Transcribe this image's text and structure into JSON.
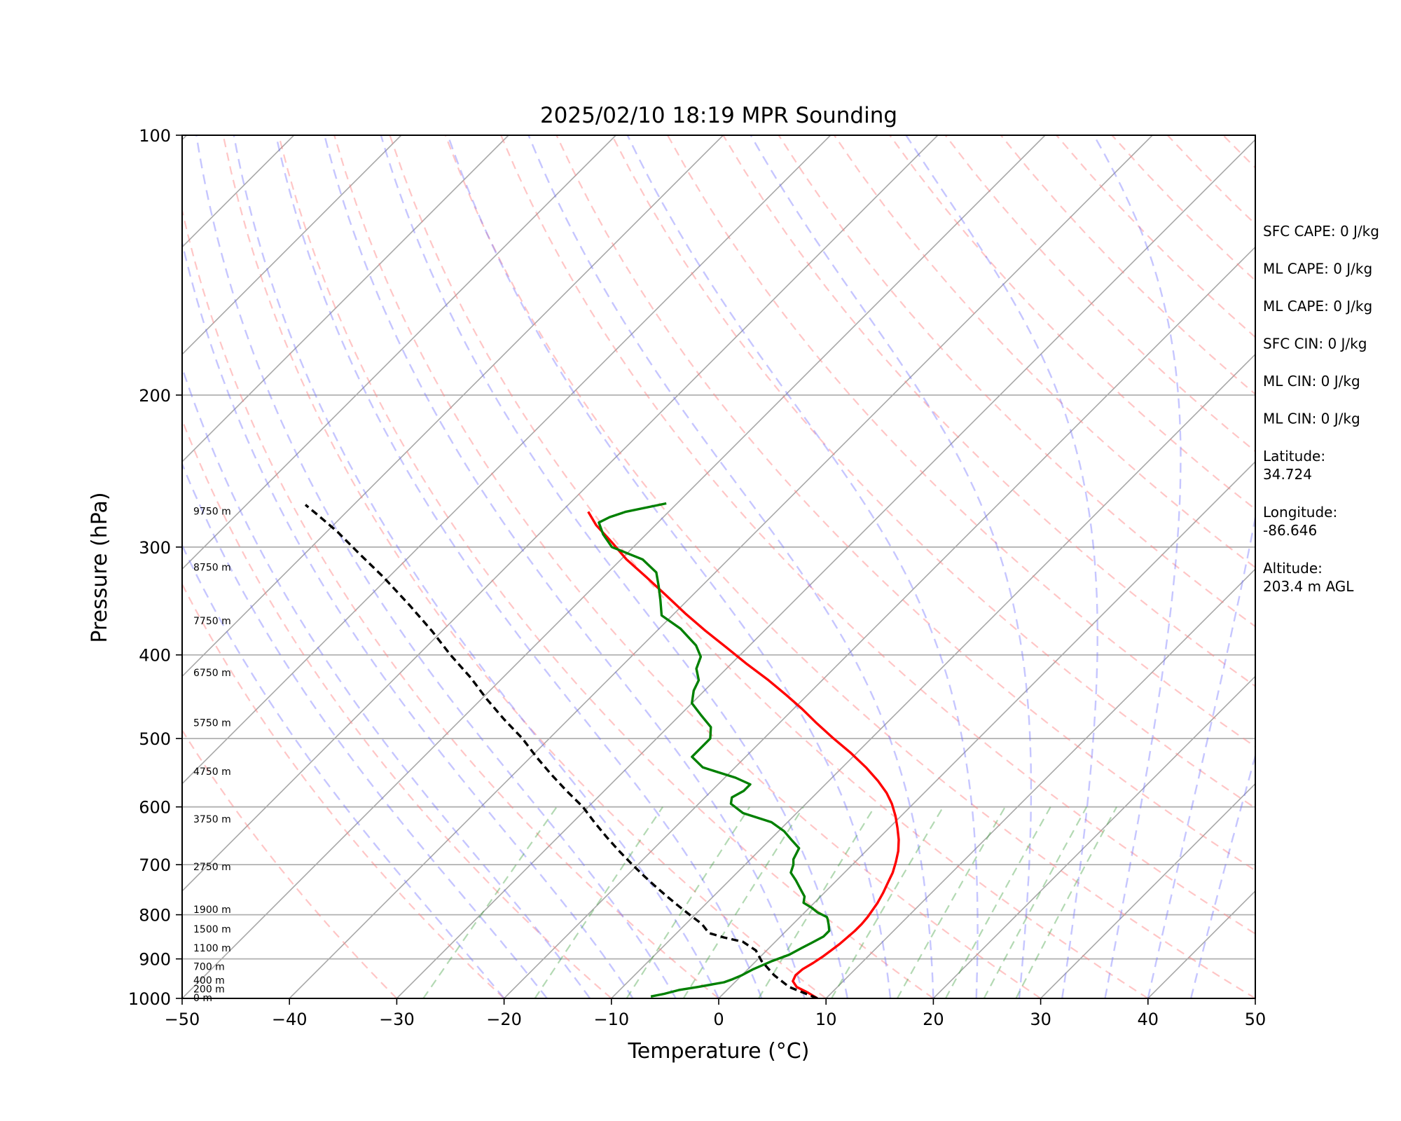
{
  "chart_data": {
    "type": "line",
    "title": "2025/02/10 18:19 MPR Sounding",
    "xlabel": "Temperature (°C)",
    "ylabel": "Pressure (hPa)",
    "xlim": [
      -50,
      50
    ],
    "ylim": [
      1000,
      100
    ],
    "y_scale": "log",
    "x_ticks": [
      "−50",
      "−40",
      "−30",
      "−20",
      "−10",
      "0",
      "10",
      "20",
      "30",
      "40",
      "50"
    ],
    "y_ticks": [
      "100",
      "200",
      "300",
      "400",
      "500",
      "600",
      "700",
      "800",
      "900",
      "1000"
    ],
    "grid": true,
    "skew": "45°",
    "series": [
      {
        "color": "#ff0000",
        "points": [
          [
            9.2,
            1000
          ],
          [
            7.8,
            985
          ],
          [
            6.2,
            970
          ],
          [
            5.3,
            955
          ],
          [
            5.0,
            940
          ],
          [
            5.1,
            925
          ],
          [
            5.5,
            910
          ],
          [
            5.8,
            895
          ],
          [
            6.0,
            880
          ],
          [
            6.2,
            865
          ],
          [
            6.3,
            850
          ],
          [
            6.4,
            835
          ],
          [
            6.4,
            820
          ],
          [
            6.3,
            805
          ],
          [
            6.1,
            790
          ],
          [
            5.9,
            775
          ],
          [
            5.5,
            755
          ],
          [
            5.0,
            735
          ],
          [
            4.5,
            715
          ],
          [
            3.8,
            695
          ],
          [
            3.0,
            675
          ],
          [
            2.0,
            655
          ],
          [
            0.8,
            635
          ],
          [
            -0.5,
            615
          ],
          [
            -2.0,
            595
          ],
          [
            -3.5,
            578
          ],
          [
            -5.4,
            560
          ],
          [
            -7.8,
            540
          ],
          [
            -10.5,
            520
          ],
          [
            -13.5,
            500
          ],
          [
            -16.5,
            480
          ],
          [
            -19.2,
            462
          ],
          [
            -22.0,
            445
          ],
          [
            -25.0,
            428
          ],
          [
            -28.5,
            410
          ],
          [
            -32.0,
            392
          ],
          [
            -35.5,
            375
          ],
          [
            -39.0,
            358
          ],
          [
            -42.5,
            341
          ],
          [
            -46.0,
            325
          ],
          [
            -49.5,
            310
          ],
          [
            -52.5,
            296
          ],
          [
            -55.5,
            283
          ],
          [
            -57.5,
            273
          ]
        ]
      },
      {
        "color": "#008000",
        "points": [
          [
            -6.5,
            995
          ],
          [
            -5.5,
            988
          ],
          [
            -4.5,
            978
          ],
          [
            -3.0,
            970
          ],
          [
            -1.0,
            958
          ],
          [
            -0.5,
            950
          ],
          [
            0.0,
            940
          ],
          [
            0.5,
            925
          ],
          [
            1.0,
            915
          ],
          [
            1.5,
            905
          ],
          [
            2.5,
            890
          ],
          [
            3.0,
            875
          ],
          [
            3.5,
            862
          ],
          [
            4.0,
            848
          ],
          [
            4.0,
            835
          ],
          [
            3.4,
            822
          ],
          [
            2.8,
            810
          ],
          [
            2.5,
            805
          ],
          [
            1.2,
            795
          ],
          [
            0.2,
            785
          ],
          [
            -1.0,
            775
          ],
          [
            -1.5,
            762
          ],
          [
            -2.5,
            748
          ],
          [
            -3.8,
            730
          ],
          [
            -5.0,
            715
          ],
          [
            -5.5,
            700
          ],
          [
            -6.0,
            690
          ],
          [
            -6.5,
            670
          ],
          [
            -8.0,
            655
          ],
          [
            -9.5,
            640
          ],
          [
            -11.5,
            625
          ],
          [
            -15.0,
            610
          ],
          [
            -17.0,
            595
          ],
          [
            -17.5,
            585
          ],
          [
            -17.0,
            575
          ],
          [
            -17.0,
            565
          ],
          [
            -19.0,
            555
          ],
          [
            -23.0,
            540
          ],
          [
            -25.0,
            525
          ],
          [
            -25.0,
            512
          ],
          [
            -25.0,
            500
          ],
          [
            -26.0,
            485
          ],
          [
            -28.0,
            470
          ],
          [
            -30.0,
            455
          ],
          [
            -31.0,
            440
          ],
          [
            -31.5,
            428
          ],
          [
            -32.8,
            415
          ],
          [
            -33.5,
            402
          ],
          [
            -35.0,
            390
          ],
          [
            -38.0,
            373
          ],
          [
            -41.0,
            360
          ],
          [
            -42.5,
            346
          ],
          [
            -44.0,
            333
          ],
          [
            -45.5,
            321
          ],
          [
            -48.0,
            310
          ],
          [
            -52.0,
            300
          ],
          [
            -54.0,
            290
          ],
          [
            -55.5,
            281
          ],
          [
            -55.0,
            277
          ],
          [
            -54.0,
            273
          ],
          [
            -52.0,
            269
          ],
          [
            -51.0,
            267
          ]
        ]
      },
      {
        "color": "#000000",
        "dashed": true,
        "points": [
          [
            9.2,
            1000
          ],
          [
            5.5,
            970
          ],
          [
            3.0,
            940
          ],
          [
            0.5,
            905
          ],
          [
            -1.0,
            880
          ],
          [
            -3.0,
            860
          ],
          [
            -5.2,
            850
          ],
          [
            -7.0,
            840
          ],
          [
            -8.5,
            820
          ],
          [
            -10.5,
            800
          ],
          [
            -12.5,
            780
          ],
          [
            -14.5,
            760
          ],
          [
            -16.5,
            740
          ],
          [
            -18.5,
            720
          ],
          [
            -20.5,
            700
          ],
          [
            -23.0,
            675
          ],
          [
            -25.5,
            650
          ],
          [
            -28.0,
            625
          ],
          [
            -30.5,
            600
          ],
          [
            -33.5,
            575
          ],
          [
            -36.5,
            550
          ],
          [
            -39.5,
            525
          ],
          [
            -42.5,
            500
          ],
          [
            -46.0,
            475
          ],
          [
            -49.5,
            450
          ],
          [
            -53.0,
            425
          ],
          [
            -57.0,
            400
          ],
          [
            -61.0,
            375
          ],
          [
            -65.5,
            350
          ],
          [
            -70.5,
            325
          ],
          [
            -75.0,
            305
          ],
          [
            -79.0,
            288
          ],
          [
            -82.5,
            275
          ],
          [
            -84.5,
            268
          ]
        ]
      }
    ],
    "height_labels": [
      "0 m",
      "200 m",
      "400 m",
      "700 m",
      "1100 m",
      "1500 m",
      "1900 m",
      "2750 m",
      "3750 m",
      "4750 m",
      "5750 m",
      "6750 m",
      "7750 m",
      "8750 m",
      "9750 m"
    ],
    "height_label_pressures": [
      1000,
      977,
      954,
      920,
      876,
      833,
      790,
      705,
      621,
      547,
      480,
      420,
      366,
      317,
      273
    ]
  },
  "stats": [
    {
      "text": "SFC CAPE: 0 J/kg"
    },
    {
      "text": "ML CAPE: 0 J/kg"
    },
    {
      "text": "ML CAPE: 0 J/kg"
    },
    {
      "text": "SFC CIN: 0 J/kg"
    },
    {
      "text": "ML CIN: 0 J/kg"
    },
    {
      "text": "ML CIN: 0 J/kg"
    },
    {
      "text": "Latitude:",
      "text2": "34.724"
    },
    {
      "text": "Longitude:",
      "text2": "-86.646"
    },
    {
      "text": "Altitude:",
      "text2": "203.4 m AGL"
    }
  ]
}
